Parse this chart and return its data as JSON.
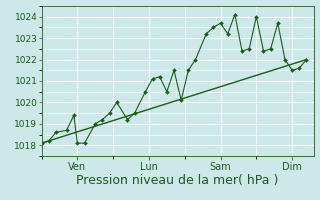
{
  "bg_color": "#cce8e8",
  "grid_color": "#ffffff",
  "line_color": "#1a5c1a",
  "marker_color": "#1a5c1a",
  "xlabel": "Pression niveau de la mer( hPa )",
  "xlabel_fontsize": 9,
  "xlabel_color": "#1a5c1a",
  "tick_label_color": "#1a5c1a",
  "ylim": [
    1017.5,
    1024.5
  ],
  "yticks": [
    1018,
    1019,
    1020,
    1021,
    1022,
    1023,
    1024
  ],
  "ytick_fontsize": 6.5,
  "xtick_labels": [
    "Ven",
    "Lun",
    "Sam",
    "Dim"
  ],
  "xtick_positions": [
    1.0,
    3.0,
    5.0,
    7.0
  ],
  "x_data": [
    0.0,
    0.2,
    0.4,
    0.7,
    0.9,
    1.0,
    1.2,
    1.5,
    1.7,
    1.9,
    2.1,
    2.4,
    2.6,
    2.9,
    3.1,
    3.3,
    3.5,
    3.7,
    3.9,
    4.1,
    4.3,
    4.6,
    4.8,
    5.0,
    5.2,
    5.4,
    5.6,
    5.8,
    6.0,
    6.2,
    6.4,
    6.6,
    6.8,
    7.0,
    7.2,
    7.4
  ],
  "y_main": [
    1018.1,
    1018.2,
    1018.6,
    1018.7,
    1019.4,
    1018.1,
    1018.1,
    1019.0,
    1019.2,
    1019.5,
    1020.0,
    1019.2,
    1019.5,
    1020.5,
    1021.1,
    1021.2,
    1020.5,
    1021.5,
    1020.1,
    1021.5,
    1022.0,
    1023.2,
    1023.5,
    1023.7,
    1023.2,
    1024.1,
    1022.4,
    1022.5,
    1024.0,
    1022.4,
    1022.5,
    1023.7,
    1022.0,
    1021.5,
    1021.6,
    1022.0
  ],
  "trend_x": [
    0.0,
    7.4
  ],
  "trend_y": [
    1018.1,
    1022.0
  ],
  "xlim": [
    0.0,
    7.6
  ]
}
